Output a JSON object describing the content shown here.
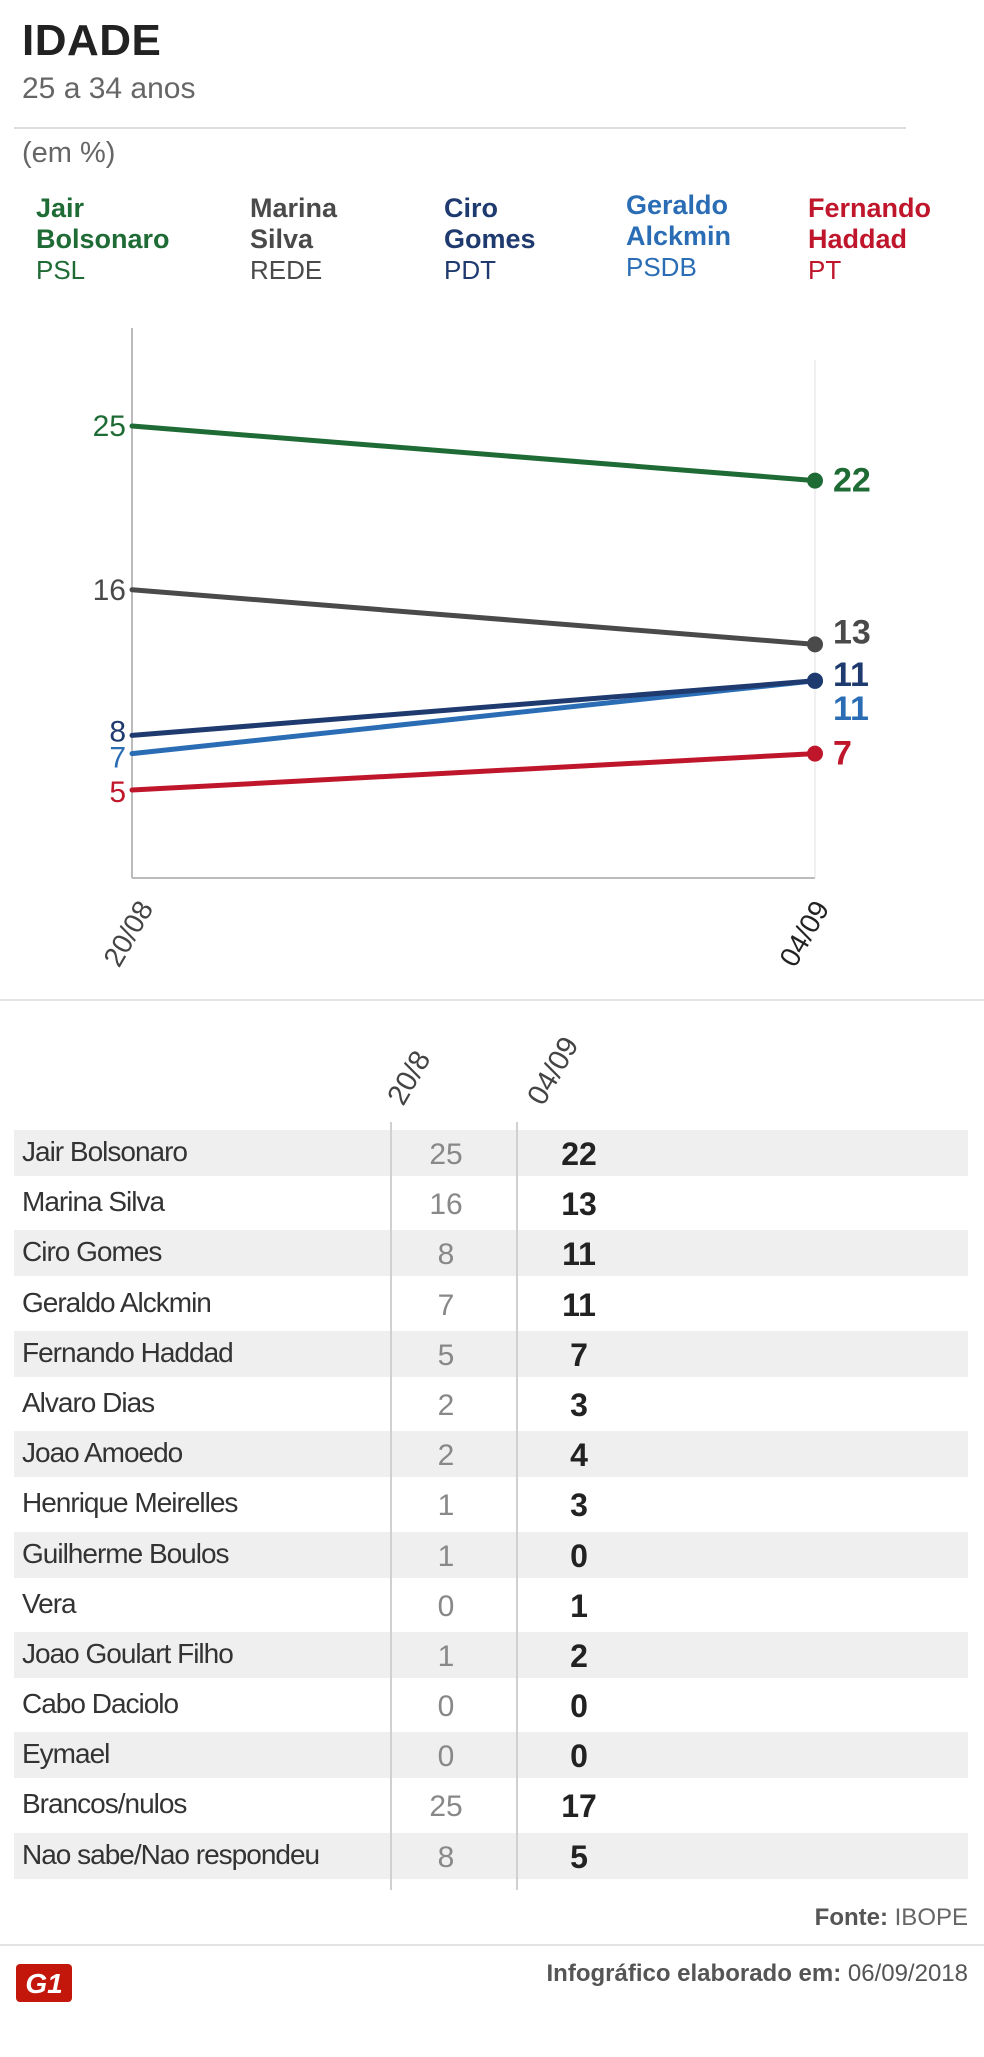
{
  "header": {
    "title": "IDADE",
    "subtitle": "25 a 34 anos",
    "unit": "(em %)"
  },
  "legend": [
    {
      "name": "Jair Bolsonaro",
      "line1": "Jair",
      "line2": "Bolsonaro",
      "party": "PSL",
      "color": "#1f6b35"
    },
    {
      "name": "Marina Silva",
      "line1": "Marina",
      "line2": "Silva",
      "party": "REDE",
      "color": "#4a4a4a"
    },
    {
      "name": "Ciro Gomes",
      "line1": "Ciro",
      "line2": "Gomes",
      "party": "PDT",
      "color": "#1e3a6e"
    },
    {
      "name": "Geraldo Alckmin",
      "line1": "Geraldo",
      "line2": "Alckmin",
      "party": "PSDB",
      "color": "#2a6db5"
    },
    {
      "name": "Fernando Haddad",
      "line1": "Fernando",
      "line2": "Haddad",
      "party": "PT",
      "color": "#c0162c"
    }
  ],
  "chart_data": {
    "type": "line",
    "x": [
      "20/08",
      "04/09"
    ],
    "ylim": [
      0,
      30
    ],
    "grid": false,
    "series": [
      {
        "name": "Jair Bolsonaro",
        "values": [
          25,
          22
        ],
        "color": "#1f6b35"
      },
      {
        "name": "Marina Silva",
        "values": [
          16,
          13
        ],
        "color": "#4a4a4a"
      },
      {
        "name": "Ciro Gomes",
        "values": [
          8,
          11
        ],
        "color": "#1e3a6e"
      },
      {
        "name": "Geraldo Alckmin",
        "values": [
          7,
          11
        ],
        "color": "#2a6db5"
      },
      {
        "name": "Fernando Haddad",
        "values": [
          5,
          7
        ],
        "color": "#c0162c"
      }
    ]
  },
  "table": {
    "col1": "20/8",
    "col2": "04/09",
    "rows": [
      {
        "name": "Jair Bolsonaro",
        "v1": "25",
        "v2": "22"
      },
      {
        "name": "Marina Silva",
        "v1": "16",
        "v2": "13"
      },
      {
        "name": "Ciro Gomes",
        "v1": "8",
        "v2": "11"
      },
      {
        "name": "Geraldo Alckmin",
        "v1": "7",
        "v2": "11"
      },
      {
        "name": "Fernando Haddad",
        "v1": "5",
        "v2": "7"
      },
      {
        "name": "Alvaro Dias",
        "v1": "2",
        "v2": "3"
      },
      {
        "name": "Joao Amoedo",
        "v1": "2",
        "v2": "4"
      },
      {
        "name": "Henrique Meirelles",
        "v1": "1",
        "v2": "3"
      },
      {
        "name": "Guilherme Boulos",
        "v1": "1",
        "v2": "0"
      },
      {
        "name": "Vera",
        "v1": "0",
        "v2": "1"
      },
      {
        "name": "Joao Goulart Filho",
        "v1": "1",
        "v2": "2"
      },
      {
        "name": "Cabo Daciolo",
        "v1": "0",
        "v2": "0"
      },
      {
        "name": "Eymael",
        "v1": "0",
        "v2": "0"
      },
      {
        "name": "Brancos/nulos",
        "v1": "25",
        "v2": "17"
      },
      {
        "name": "Nao sabe/Nao respondeu",
        "v1": "8",
        "v2": "5"
      }
    ]
  },
  "footer": {
    "source_label": "Fonte:",
    "source_value": "IBOPE",
    "credit_label": "Infográfico elaborado em:",
    "credit_date": "06/09/2018",
    "logo_text": "G1",
    "logo_color": "#c4170c"
  }
}
